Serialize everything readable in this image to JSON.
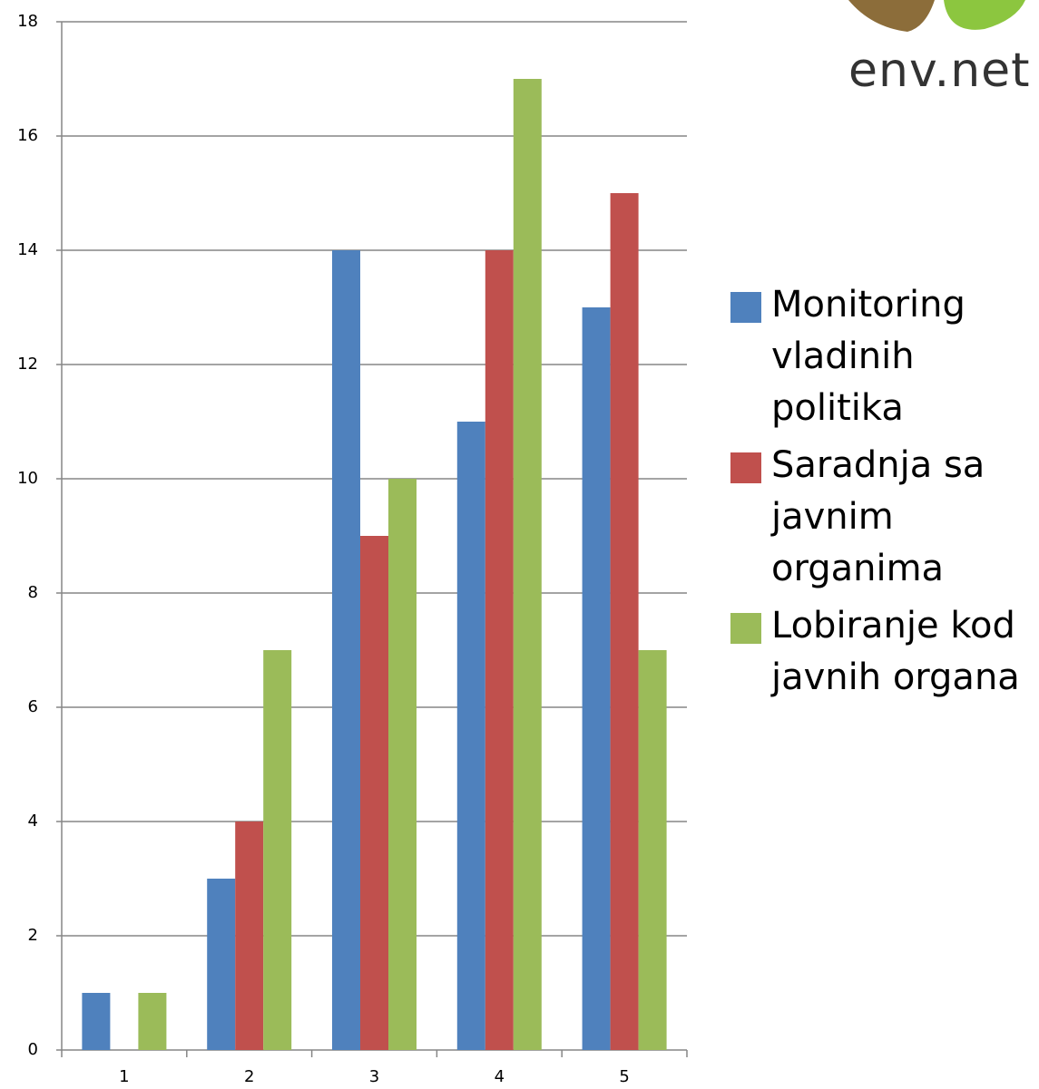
{
  "chart_data": {
    "type": "bar",
    "logo_text": "env.net",
    "categories": [
      "1",
      "2",
      "3",
      "4",
      "5"
    ],
    "series": [
      {
        "name": "Monitoring vladinih politika",
        "color": "#4f81bd",
        "values": [
          1,
          3,
          14,
          11,
          13
        ]
      },
      {
        "name": "Saradnja sa javnim organima",
        "color": "#c0504d",
        "values": [
          0,
          4,
          9,
          14,
          15
        ]
      },
      {
        "name": "Lobiranje kod javnih organa",
        "color": "#9bbb59",
        "values": [
          1,
          7,
          10,
          17,
          7
        ]
      }
    ],
    "ylim": [
      0,
      18
    ],
    "yticks": [
      0,
      2,
      4,
      6,
      8,
      10,
      12,
      14,
      16,
      18
    ],
    "grid": true,
    "legend": "right"
  }
}
